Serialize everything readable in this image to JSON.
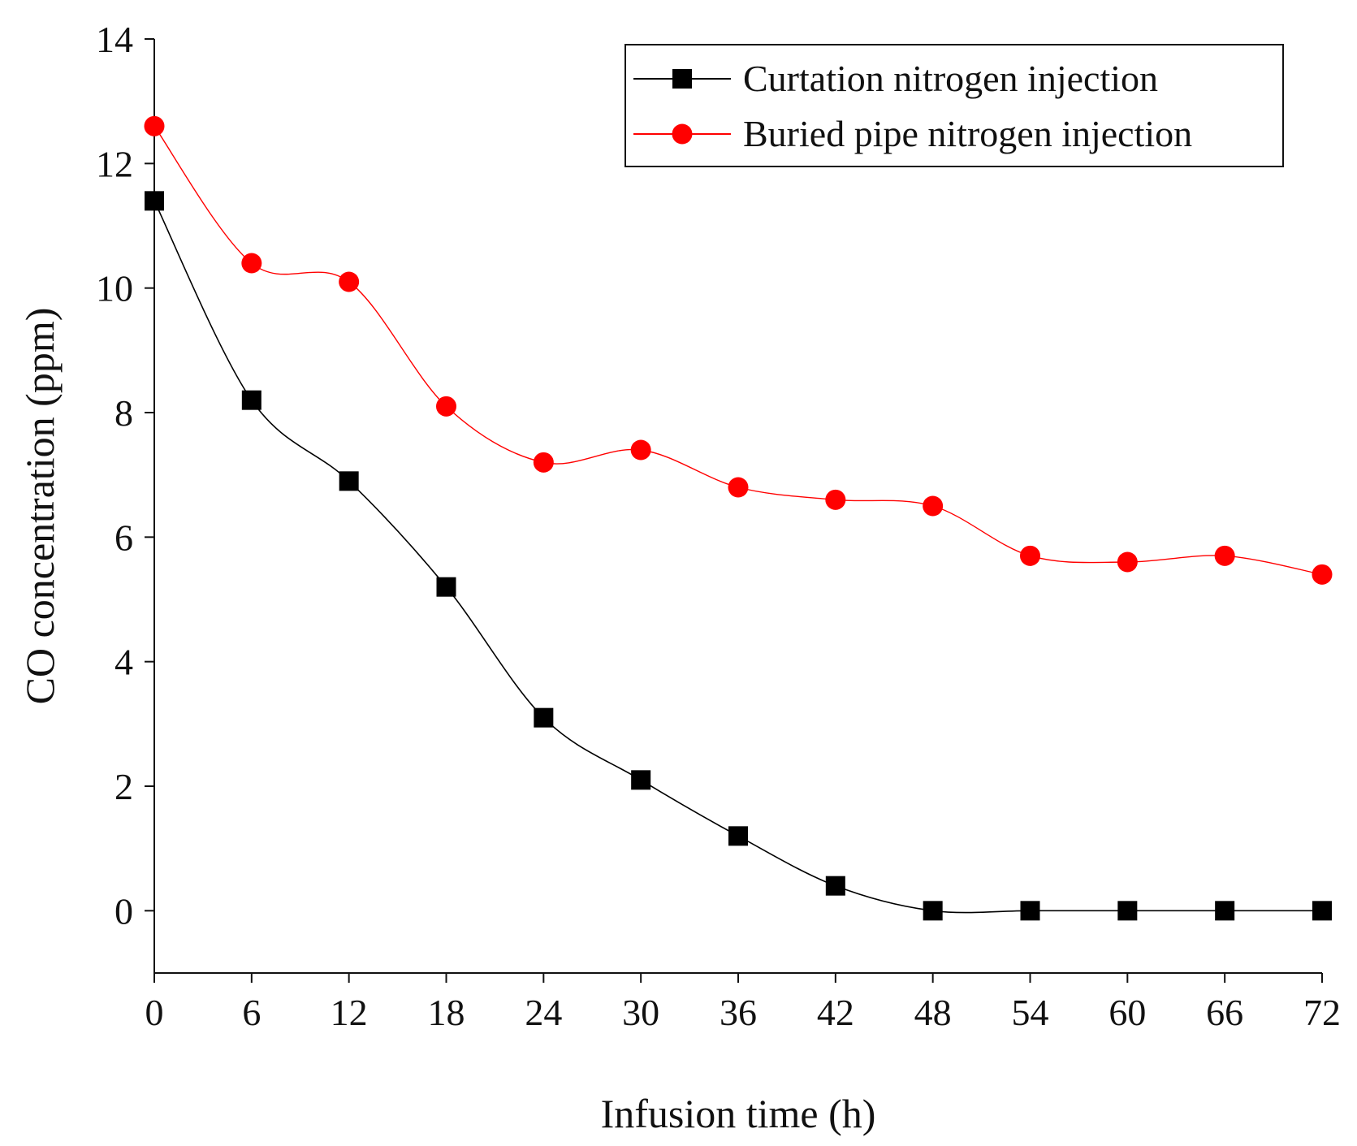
{
  "chart_data": {
    "type": "line",
    "title": "",
    "xlabel": "Infusion time (h)",
    "ylabel": "CO concentration (ppm)",
    "x": [
      0,
      6,
      12,
      18,
      24,
      30,
      36,
      42,
      48,
      54,
      60,
      66,
      72
    ],
    "xlim": [
      0,
      72
    ],
    "ylim": [
      -1,
      14
    ],
    "xticks": [
      0,
      6,
      12,
      18,
      24,
      30,
      36,
      42,
      48,
      54,
      60,
      66,
      72
    ],
    "yticks": [
      0,
      2,
      4,
      6,
      8,
      10,
      12,
      14
    ],
    "grid": false,
    "legend_position": "top-right",
    "series": [
      {
        "name": "Curtation nitrogen injection",
        "color": "#000000",
        "marker": "square",
        "values": [
          11.4,
          8.2,
          6.9,
          5.2,
          3.1,
          2.1,
          1.2,
          0.4,
          0,
          0,
          0,
          0,
          0
        ]
      },
      {
        "name": "Buried pipe nitrogen injection",
        "color": "#ff0000",
        "marker": "circle",
        "values": [
          12.6,
          10.4,
          10.1,
          8.1,
          7.2,
          7.4,
          6.8,
          6.6,
          6.5,
          5.7,
          5.6,
          5.7,
          5.4
        ]
      }
    ]
  }
}
